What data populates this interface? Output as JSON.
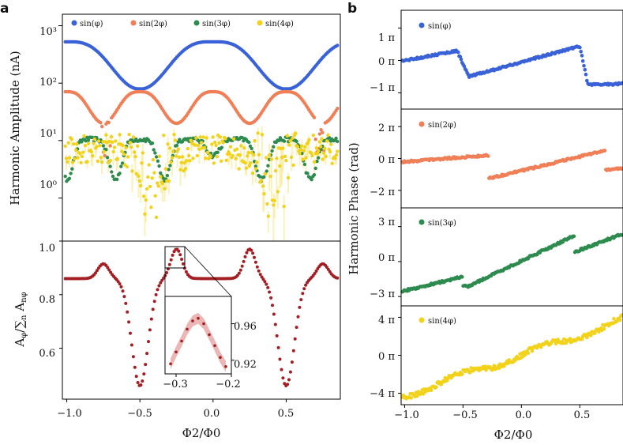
{
  "panel_letters": {
    "a": "a",
    "b": "b"
  },
  "colors": {
    "sin1": "#3a62d8",
    "sin2": "#f07f57",
    "sin3": "#2e8b4f",
    "sin4": "#f2d21a",
    "ratio": "#a31e22"
  },
  "chart_data": [
    {
      "id": "a-top",
      "type": "scatter",
      "yscale": "log",
      "xlim": [
        -1.03,
        0.87
      ],
      "ylim_log10": [
        -0.75,
        3.2
      ],
      "ylabel": "Harmonic Amplitude (nA)",
      "yticks": [
        "10³",
        "10²",
        "10¹",
        "10⁰"
      ],
      "yticks_log10": [
        3,
        2,
        1,
        0
      ],
      "legend_loc": "top",
      "series": [
        {
          "name": "sin(φ)",
          "color": "#3a62d8",
          "description": "peaks ≈520 nA at Φ2/Φ0 = 0 and ±1, minima ≈65 nA at ±0.5"
        },
        {
          "name": "sin(2φ)",
          "color": "#f07f57",
          "description": "peaks ≈70 nA at 0, ±0.5; dips ≈20 nA at ±0.25, ±0.75"
        },
        {
          "name": "sin(3φ)",
          "color": "#2e8b4f",
          "description": "≈10 nA with dips at ±0.17, ±0.5, ±0.83"
        },
        {
          "name": "sin(4φ)",
          "color": "#f2d21a",
          "description": "≈7 nA, noisy dips ≈0.3 nA near ±0.4"
        }
      ]
    },
    {
      "id": "a-bottom",
      "type": "scatter",
      "xlim": [
        -1.03,
        0.87
      ],
      "ylim": [
        0.41,
        1.0
      ],
      "xlabel": "Φ2/Φ0",
      "ylabel": "Aφ/∑n Anφ",
      "ylabel_main": "A",
      "ylabel_sub1": "φ",
      "ylabel_sep": "/∑",
      "ylabel_sub2": "n",
      "ylabel_mid": " A",
      "ylabel_sub3": "nφ",
      "xticks": [
        "−1.0",
        "−0.5",
        "0.0",
        "0.5"
      ],
      "xtick_values": [
        -1.0,
        -0.5,
        0.0,
        0.5
      ],
      "yticks": [
        "1.0",
        "0.8",
        "0.6"
      ],
      "ytick_values": [
        1.0,
        0.8,
        0.6
      ],
      "series": [
        {
          "name": "Aφ ratio",
          "color": "#a31e22",
          "description": "≈0.86 baseline, peaks 0.92–0.97 at ±0.25, ±0.75; minima 0.46 at ±0.5"
        }
      ],
      "inset": {
        "xlim": [
          -0.32,
          -0.2
        ],
        "ylim": [
          0.905,
          0.99
        ],
        "xticks": [
          "−0.3",
          "−0.2"
        ],
        "xtick_values": [
          -0.3,
          -0.2
        ],
        "yticks": [
          "0.96",
          "0.92"
        ],
        "ytick_values": [
          0.96,
          0.92
        ],
        "points_x": [
          -0.31,
          -0.3,
          -0.29,
          -0.28,
          -0.27,
          -0.26,
          -0.25,
          -0.24,
          -0.23,
          -0.22,
          -0.21
        ],
        "points_y": [
          0.916,
          0.929,
          0.941,
          0.954,
          0.963,
          0.966,
          0.96,
          0.948,
          0.936,
          0.923,
          0.913
        ]
      }
    },
    {
      "id": "b-phase",
      "type": "scatter",
      "xlim": [
        -1.03,
        0.87
      ],
      "xlabel": "Φ2/Φ0",
      "ylabel": "Harmonic Phase (rad)",
      "xticks": [
        "−1.0",
        "−0.5",
        "0.0",
        "0.5"
      ],
      "xtick_values": [
        -1.0,
        -0.5,
        0.0,
        0.5
      ],
      "series": [
        {
          "name": "sin(φ)",
          "color": "#3a62d8",
          "ylim_pi": [
            -1.5,
            1.55
          ],
          "yticks": [
            "1 π",
            "0 π",
            "−1 π"
          ],
          "ytick_values_pi": [
            1,
            0,
            -1
          ]
        },
        {
          "name": "sin(2φ)",
          "color": "#f07f57",
          "ylim_pi": [
            -3.1,
            3.1
          ],
          "yticks": [
            "2 π",
            "0 π",
            "−2 π"
          ],
          "ytick_values_pi": [
            2,
            0,
            -2
          ]
        },
        {
          "name": "sin(3φ)",
          "color": "#2e8b4f",
          "ylim_pi": [
            -3.8,
            4.6
          ],
          "yticks": [
            "3 π",
            "0 π",
            "−3 π"
          ],
          "ytick_values_pi": [
            3,
            0,
            -3
          ]
        },
        {
          "name": "sin(4φ)",
          "color": "#f2d21a",
          "ylim_pi": [
            -5.2,
            5.2
          ],
          "yticks": [
            "4 π",
            "0 π",
            "−4 π"
          ],
          "ytick_values_pi": [
            4,
            0,
            -4
          ]
        }
      ]
    }
  ]
}
